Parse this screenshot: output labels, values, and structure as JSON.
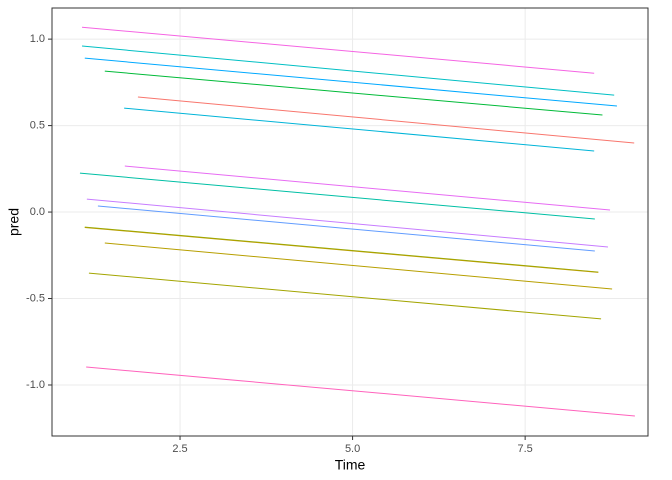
{
  "chart_data": {
    "type": "line",
    "x_label": "Time",
    "y_label": "pred",
    "xlim": [
      0.645,
      9.28
    ],
    "ylim": [
      -1.295,
      1.18
    ],
    "xticks": [
      2.5,
      {
        "value": 5,
        "label": "5.0"
      },
      7.5
    ],
    "yticks": [
      {
        "value": -1,
        "label": "-1.0"
      },
      -0.5,
      {
        "value": 0,
        "label": "0.0"
      },
      0.5,
      {
        "value": 1,
        "label": "1.0"
      }
    ],
    "grid": true,
    "series": [
      {
        "color": "#F564E3",
        "x": [
          1.08,
          8.5
        ],
        "values": [
          1.069,
          0.803
        ]
      },
      {
        "color": "#00BFC4",
        "x": [
          1.08,
          8.79
        ],
        "values": [
          0.96,
          0.676
        ]
      },
      {
        "color": "#00A9FF",
        "x": [
          1.12,
          8.83
        ],
        "values": [
          0.89,
          0.613
        ]
      },
      {
        "color": "#00BA38",
        "x": [
          1.41,
          8.62
        ],
        "values": [
          0.815,
          0.561
        ]
      },
      {
        "color": "#F8766D",
        "x": [
          1.89,
          9.08
        ],
        "values": [
          0.665,
          0.399
        ]
      },
      {
        "color": "#00B4D8",
        "x": [
          1.69,
          8.5
        ],
        "values": [
          0.601,
          0.353
        ]
      },
      {
        "color": "#E76BF3",
        "x": [
          1.7,
          8.73
        ],
        "values": [
          0.266,
          0.012
        ]
      },
      {
        "color": "#00BFA5",
        "x": [
          1.05,
          8.51
        ],
        "values": [
          0.225,
          -0.04
        ]
      },
      {
        "color": "#C77CFF",
        "x": [
          1.15,
          8.7
        ],
        "values": [
          0.075,
          -0.202
        ]
      },
      {
        "color": "#619CFF",
        "x": [
          1.31,
          8.51
        ],
        "values": [
          0.035,
          -0.225
        ]
      },
      {
        "color": "#7CAE00",
        "x": [
          1.12,
          8.56
        ],
        "values": [
          -0.087,
          -0.347
        ]
      },
      {
        "color": "#B79F00",
        "x": [
          1.12,
          8.56
        ],
        "values": [
          -0.089,
          -0.349
        ]
      },
      {
        "color": "#B79F00",
        "x": [
          1.41,
          8.76
        ],
        "values": [
          -0.179,
          -0.445
        ]
      },
      {
        "color": "#A3A500",
        "x": [
          1.18,
          8.6
        ],
        "values": [
          -0.353,
          -0.618
        ]
      },
      {
        "color": "#FF62BC",
        "x": [
          1.14,
          9.09
        ],
        "values": [
          -0.896,
          -1.179
        ]
      }
    ]
  }
}
